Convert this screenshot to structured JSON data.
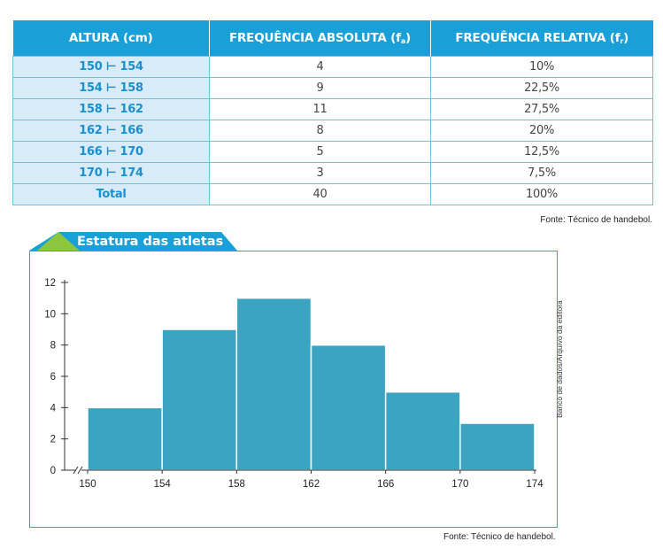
{
  "table": {
    "headers": {
      "col1": "ALTURA (cm)",
      "col2": "FREQUÊNCIA ABSOLUTA (f",
      "col2_sub": "a",
      "col3": "FREQUÊNCIA RELATIVA (f",
      "col3_sub": "r"
    },
    "rows": [
      {
        "interval": "150 ⊢ 154",
        "fa": "4",
        "fr": "10%"
      },
      {
        "interval": "154 ⊢ 158",
        "fa": "9",
        "fr": "22,5%"
      },
      {
        "interval": "158 ⊢ 162",
        "fa": "11",
        "fr": "27,5%"
      },
      {
        "interval": "162 ⊢ 166",
        "fa": "8",
        "fr": "20%"
      },
      {
        "interval": "166 ⊢ 170",
        "fa": "5",
        "fr": "12,5%"
      },
      {
        "interval": "170 ⊢ 174",
        "fa": "3",
        "fr": "7,5%"
      }
    ],
    "total": {
      "label": "Total",
      "fa": "40",
      "fr": "100%"
    },
    "source": "Fonte: Técnico de handebol."
  },
  "chart_data": {
    "type": "bar",
    "title": "Estatura das atletas",
    "bins": [
      [
        150,
        154
      ],
      [
        154,
        158
      ],
      [
        158,
        162
      ],
      [
        162,
        166
      ],
      [
        166,
        170
      ],
      [
        170,
        174
      ]
    ],
    "values": [
      4,
      9,
      11,
      8,
      5,
      3
    ],
    "x_ticks": [
      "150",
      "154",
      "158",
      "162",
      "166",
      "170",
      "174"
    ],
    "y_ticks": [
      "0",
      "2",
      "4",
      "6",
      "8",
      "10",
      "12"
    ],
    "xlim": [
      150,
      174
    ],
    "ylim": [
      0,
      12
    ],
    "xlabel": "",
    "ylabel": "",
    "grid": false,
    "axis_break": true,
    "bar_color": "#3ba4c0",
    "frame_color": "#29a3dc",
    "credit": "Banco de dados/Arquivo da editora",
    "source": "Fonte: Técnico de handebol."
  }
}
